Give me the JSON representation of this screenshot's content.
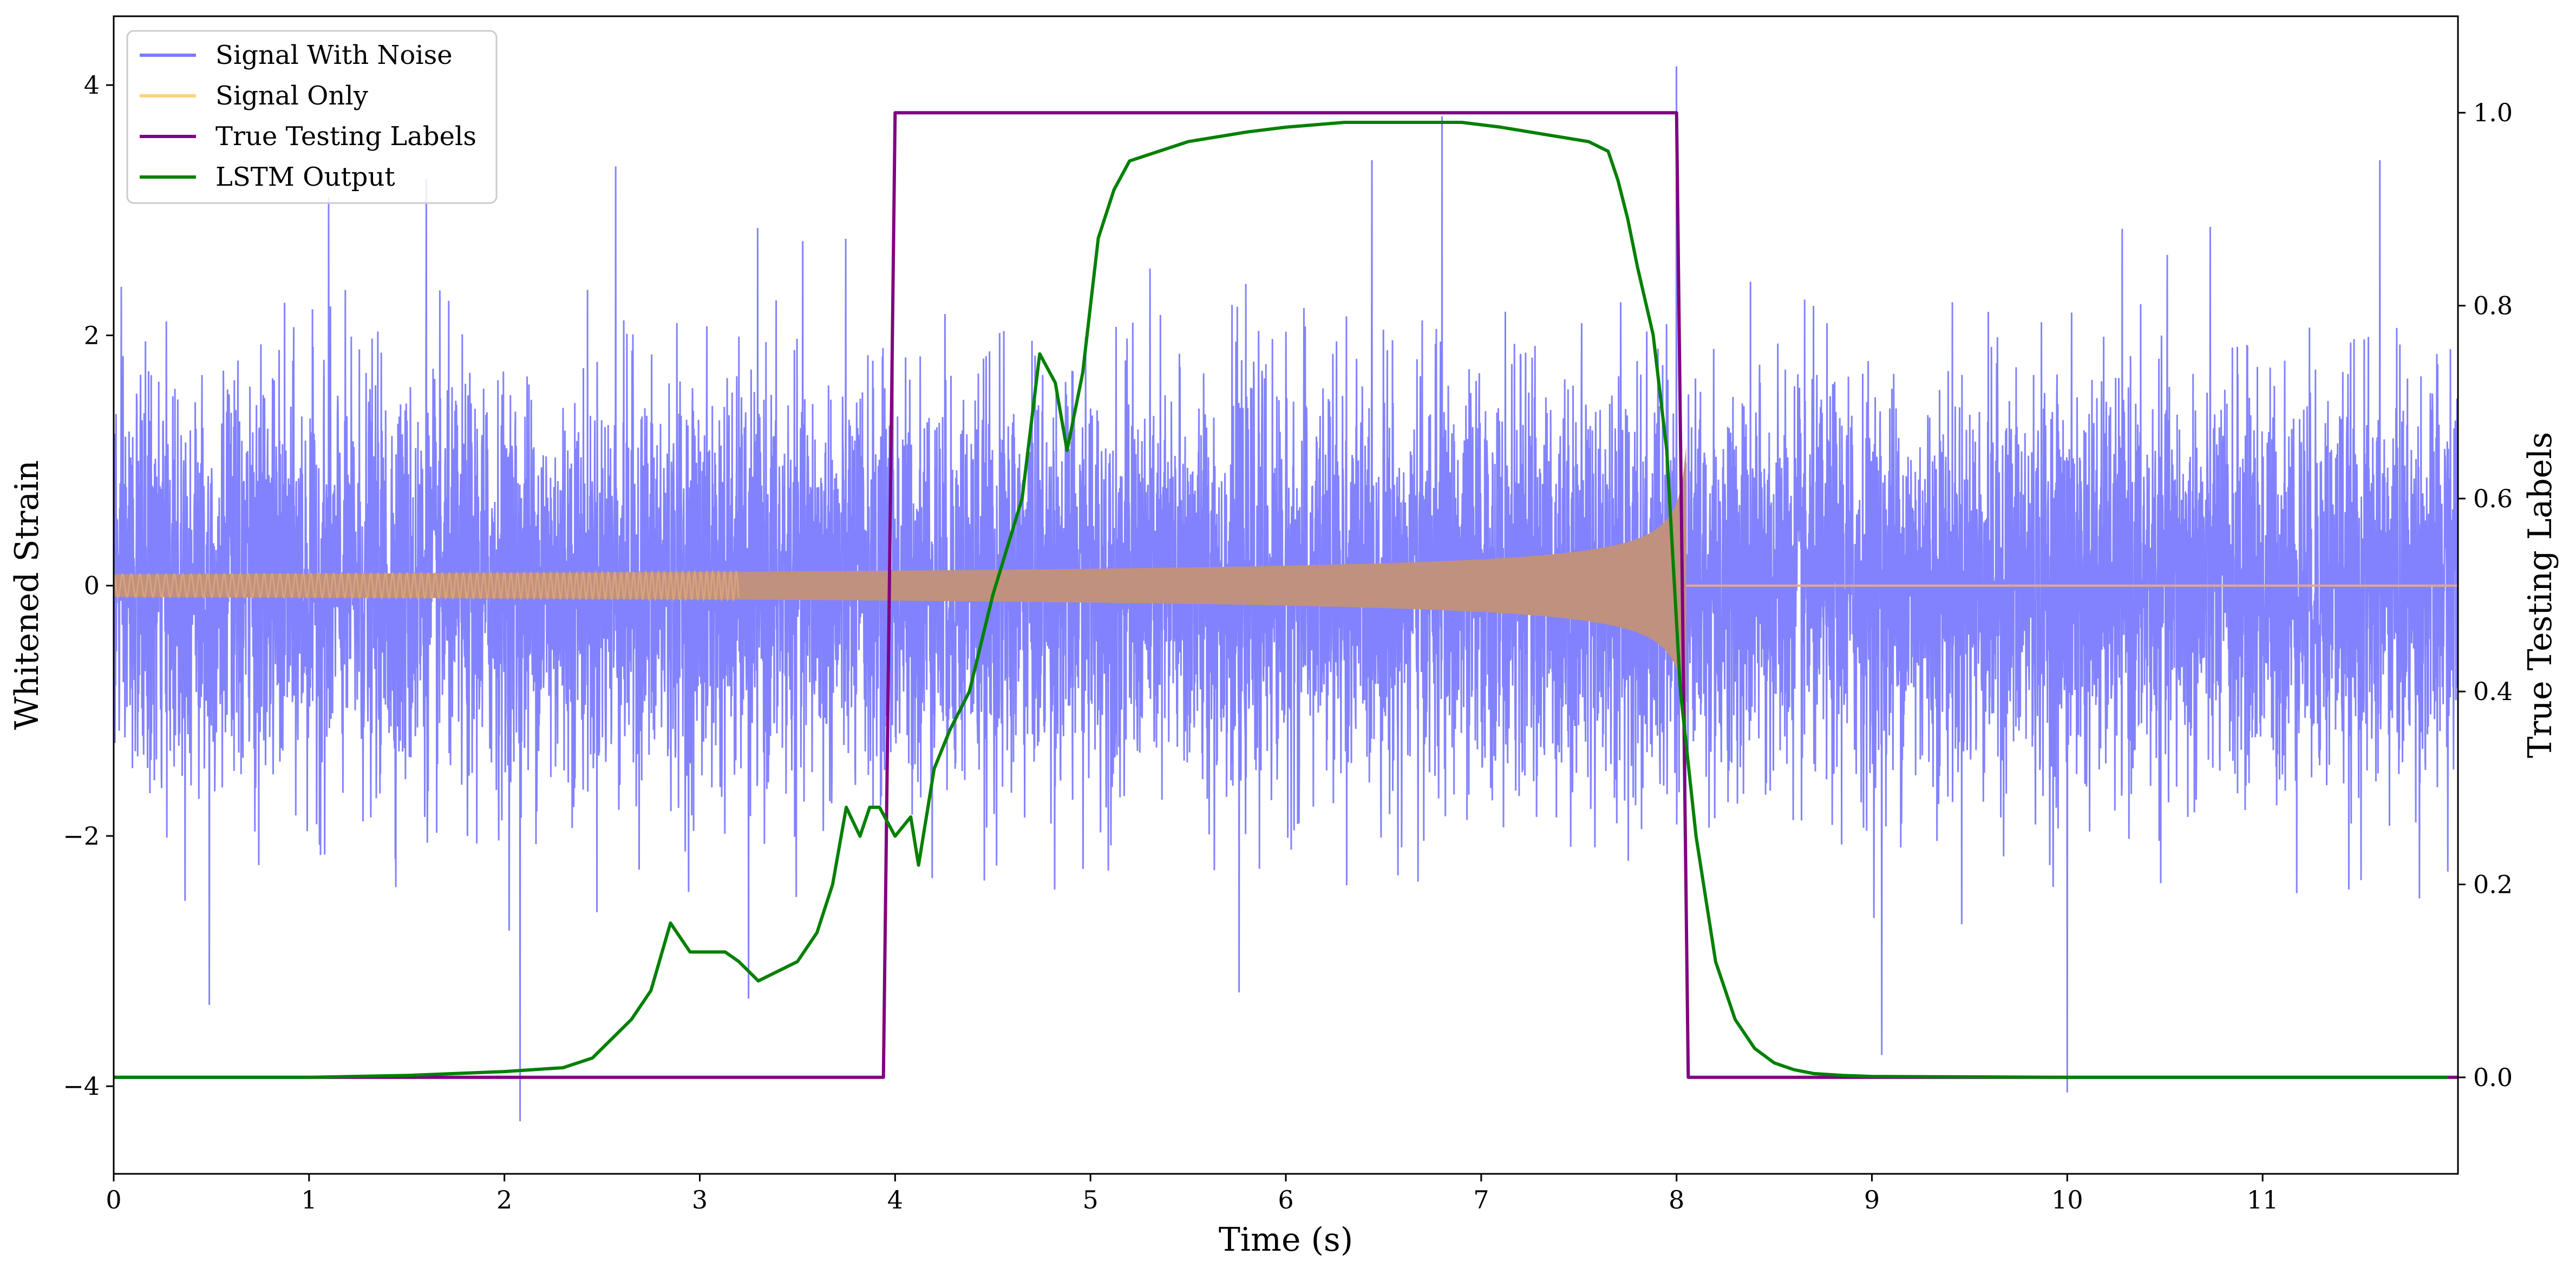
{
  "chart_data": {
    "type": "line",
    "xlabel": "Time (s)",
    "ylabel": "Whitened Strain",
    "y2label": "True Testing Labels",
    "xlim": [
      0,
      12
    ],
    "ylim": [
      -4.7,
      4.55
    ],
    "y2lim": [
      -0.1,
      1.1
    ],
    "x_ticks": [
      0,
      1,
      2,
      3,
      4,
      5,
      6,
      7,
      8,
      9,
      10,
      11
    ],
    "y_ticks": [
      -4,
      -2,
      0,
      2,
      4
    ],
    "y2_ticks": [
      0.0,
      0.2,
      0.4,
      0.6,
      0.8,
      1.0
    ],
    "y_tick_labels": [
      "−4",
      "−2",
      "0",
      "2",
      "4"
    ],
    "y2_tick_labels": [
      "0.0",
      "0.2",
      "0.4",
      "0.6",
      "0.8",
      "1.0"
    ],
    "legend_position": "top-left",
    "grid": false,
    "series": [
      {
        "name": "Signal With Noise",
        "color": "#7b7bff",
        "kind": "noise",
        "axis": "left",
        "std": 0.8,
        "extremes": [
          {
            "x": 0.49,
            "y": -3.35
          },
          {
            "x": 1.1,
            "y": 3.1
          },
          {
            "x": 1.6,
            "y": 3.25
          },
          {
            "x": 2.08,
            "y": -4.28
          },
          {
            "x": 2.57,
            "y": 3.35
          },
          {
            "x": 3.25,
            "y": -3.3
          },
          {
            "x": 5.76,
            "y": -3.25
          },
          {
            "x": 6.8,
            "y": 3.75
          },
          {
            "x": 8.0,
            "y": 4.15
          },
          {
            "x": 9.05,
            "y": -3.75
          },
          {
            "x": 10.0,
            "y": -4.05
          },
          {
            "x": 11.6,
            "y": 3.4
          }
        ]
      },
      {
        "name": "Signal Only",
        "color": "#ffd27a",
        "kind": "chirp",
        "axis": "left",
        "t_start": 0,
        "t_merge": 8.05,
        "amp_start": 0.09,
        "amp_end": 1.15
      },
      {
        "name": "True Testing Labels",
        "color": "#800080",
        "kind": "line",
        "axis": "right",
        "x": [
          0,
          3.94,
          4.0,
          8.0,
          8.06,
          12
        ],
        "y": [
          0,
          0,
          1,
          1,
          0,
          0
        ]
      },
      {
        "name": "LSTM Output",
        "color": "#008000",
        "kind": "line",
        "axis": "right",
        "x": [
          0,
          1.0,
          1.5,
          2.0,
          2.3,
          2.45,
          2.55,
          2.65,
          2.75,
          2.85,
          2.95,
          3.05,
          3.13,
          3.2,
          3.3,
          3.4,
          3.5,
          3.6,
          3.68,
          3.75,
          3.82,
          3.87,
          3.92,
          4.0,
          4.08,
          4.12,
          4.2,
          4.28,
          4.38,
          4.5,
          4.65,
          4.74,
          4.82,
          4.88,
          4.96,
          5.04,
          5.12,
          5.2,
          5.35,
          5.5,
          5.65,
          5.8,
          6.0,
          6.3,
          6.6,
          6.9,
          7.1,
          7.25,
          7.4,
          7.55,
          7.65,
          7.7,
          7.75,
          7.8,
          7.88,
          7.95,
          8.02,
          8.1,
          8.2,
          8.3,
          8.4,
          8.5,
          8.6,
          8.7,
          8.85,
          9.0,
          10.0,
          11.0,
          11.95
        ],
        "y": [
          0.0,
          0.0,
          0.002,
          0.006,
          0.01,
          0.02,
          0.04,
          0.06,
          0.09,
          0.16,
          0.13,
          0.13,
          0.13,
          0.12,
          0.1,
          0.11,
          0.12,
          0.15,
          0.2,
          0.28,
          0.25,
          0.28,
          0.28,
          0.25,
          0.27,
          0.22,
          0.32,
          0.36,
          0.4,
          0.5,
          0.6,
          0.75,
          0.72,
          0.65,
          0.73,
          0.87,
          0.92,
          0.95,
          0.96,
          0.97,
          0.975,
          0.98,
          0.985,
          0.99,
          0.99,
          0.99,
          0.985,
          0.98,
          0.975,
          0.97,
          0.96,
          0.93,
          0.89,
          0.84,
          0.77,
          0.65,
          0.4,
          0.25,
          0.12,
          0.06,
          0.03,
          0.015,
          0.008,
          0.004,
          0.002,
          0.001,
          0.0,
          0.0,
          0.0
        ]
      }
    ]
  }
}
